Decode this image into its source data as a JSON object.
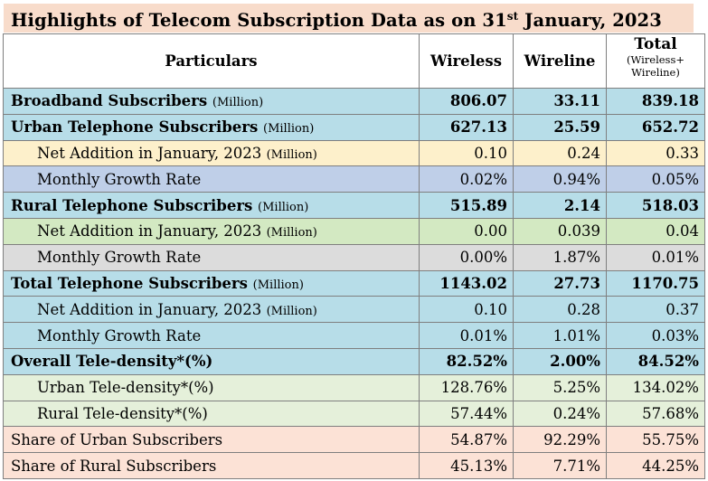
{
  "title": {
    "main": "Highlights of Telecom Subscription Data as on 31",
    "sup": "st",
    "tail": " January, 2023"
  },
  "header": {
    "particulars": "Particulars",
    "wireless": "Wireless",
    "wireline": "Wireline",
    "total": "Total",
    "total_sub": "(Wireless+",
    "total_sub2": "Wireline)"
  },
  "rows": [
    {
      "label": "Broadband Subscribers",
      "unit": "(Million)",
      "wireless": "806.07",
      "wireline": "33.11",
      "total": "839.18"
    },
    {
      "label": "Urban Telephone Subscribers",
      "unit": "(Million)",
      "wireless": "627.13",
      "wireline": "25.59",
      "total": "652.72"
    },
    {
      "label": "Net Addition in January, 2023",
      "unit": "(Million)",
      "wireless": "0.10",
      "wireline": "0.24",
      "total": "0.33"
    },
    {
      "label": "Monthly Growth Rate",
      "unit": "",
      "wireless": "0.02%",
      "wireline": "0.94%",
      "total": "0.05%"
    },
    {
      "label": "Rural Telephone Subscribers",
      "unit": "(Million)",
      "wireless": "515.89",
      "wireline": "2.14",
      "total": "518.03"
    },
    {
      "label": "Net Addition in January, 2023",
      "unit": "(Million)",
      "wireless": "0.00",
      "wireline": "0.039",
      "total": "0.04"
    },
    {
      "label": "Monthly Growth Rate",
      "unit": "",
      "wireless": "0.00%",
      "wireline": "1.87%",
      "total": "0.01%"
    },
    {
      "label": "Total Telephone Subscribers",
      "unit": "(Million)",
      "wireless": "1143.02",
      "wireline": "27.73",
      "total": "1170.75"
    },
    {
      "label": "Net Addition in January, 2023",
      "unit": "(Million)",
      "wireless": "0.10",
      "wireline": "0.28",
      "total": "0.37"
    },
    {
      "label": "Monthly Growth Rate",
      "unit": "",
      "wireless": "0.01%",
      "wireline": "1.01%",
      "total": "0.03%"
    },
    {
      "label": "Overall Tele-density*(%)",
      "unit": "",
      "wireless": "82.52%",
      "wireline": "2.00%",
      "total": "84.52%"
    },
    {
      "label": "Urban Tele-density*(%)",
      "unit": "",
      "wireless": "128.76%",
      "wireline": "5.25%",
      "total": "134.02%"
    },
    {
      "label": "Rural Tele-density*(%)",
      "unit": "",
      "wireless": "57.44%",
      "wireline": "0.24%",
      "total": "57.68%"
    },
    {
      "label": "Share of Urban Subscribers",
      "unit": "",
      "wireless": "54.87%",
      "wireline": "92.29%",
      "total": "55.75%"
    },
    {
      "label": "Share of Rural Subscribers",
      "unit": "",
      "wireless": "45.13%",
      "wireline": "7.71%",
      "total": "44.25%"
    }
  ],
  "colors": {
    "title_bg": "#f8dccb",
    "blue": "#b7dde8",
    "yellow": "#fdf0cb",
    "periwinkle": "#bfcfe8",
    "green": "#d3e9c2",
    "gray": "#dcdcdc",
    "light_green": "#e5f0da",
    "salmon": "#fce2d6"
  }
}
